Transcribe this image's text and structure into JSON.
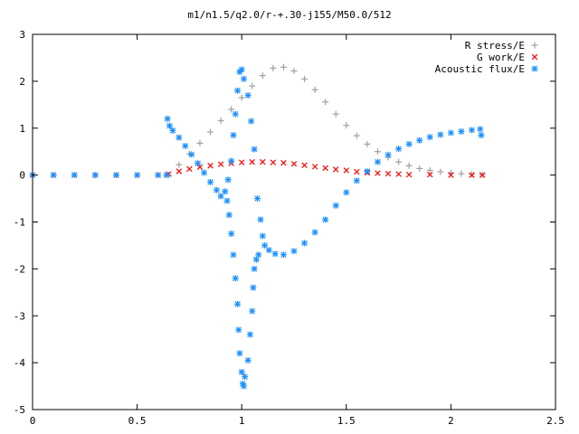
{
  "chart_data": {
    "type": "scatter",
    "title": "m1/n1.5/q2.0/r-+.30-j155/M50.0/512",
    "xlabel": "",
    "ylabel": "",
    "xlim": [
      0,
      2.5
    ],
    "ylim": [
      -5,
      3
    ],
    "x_ticks": [
      {
        "value": 0,
        "label": "0"
      },
      {
        "value": 0.5,
        "label": "0.5"
      },
      {
        "value": 1,
        "label": "1"
      },
      {
        "value": 1.5,
        "label": "1.5"
      },
      {
        "value": 2,
        "label": "2"
      },
      {
        "value": 2.5,
        "label": "2.5"
      }
    ],
    "y_ticks": [
      {
        "value": -5,
        "label": "-5"
      },
      {
        "value": -4,
        "label": "-4"
      },
      {
        "value": -3,
        "label": "-3"
      },
      {
        "value": -2,
        "label": "-2"
      },
      {
        "value": -1,
        "label": "-1"
      },
      {
        "value": 0,
        "label": "0"
      },
      {
        "value": 1,
        "label": "1"
      },
      {
        "value": 2,
        "label": "2"
      },
      {
        "value": 3,
        "label": "3"
      }
    ],
    "grid": false,
    "legend_position": "top-right",
    "series": [
      {
        "name": "R stress/E",
        "color": "#a0a0a0",
        "marker": "plus",
        "points": [
          [
            0.65,
            0.0
          ],
          [
            0.7,
            0.22
          ],
          [
            0.75,
            0.45
          ],
          [
            0.8,
            0.68
          ],
          [
            0.85,
            0.92
          ],
          [
            0.9,
            1.16
          ],
          [
            0.95,
            1.4
          ],
          [
            1.0,
            1.65
          ],
          [
            1.05,
            1.9
          ],
          [
            1.1,
            2.12
          ],
          [
            1.15,
            2.28
          ],
          [
            1.2,
            2.3
          ],
          [
            1.25,
            2.22
          ],
          [
            1.3,
            2.05
          ],
          [
            1.35,
            1.82
          ],
          [
            1.4,
            1.56
          ],
          [
            1.45,
            1.3
          ],
          [
            1.5,
            1.06
          ],
          [
            1.55,
            0.84
          ],
          [
            1.6,
            0.66
          ],
          [
            1.65,
            0.5
          ],
          [
            1.7,
            0.38
          ],
          [
            1.75,
            0.28
          ],
          [
            1.8,
            0.2
          ],
          [
            1.85,
            0.14
          ],
          [
            1.9,
            0.1
          ],
          [
            1.95,
            0.07
          ],
          [
            2.0,
            0.05
          ],
          [
            2.05,
            0.03
          ],
          [
            2.1,
            0.02
          ],
          [
            2.15,
            0.01
          ]
        ]
      },
      {
        "name": "G work/E",
        "color": "#ff0000",
        "marker": "cross",
        "points": [
          [
            0.0,
            0.0
          ],
          [
            0.1,
            0.0
          ],
          [
            0.2,
            0.0
          ],
          [
            0.3,
            0.0
          ],
          [
            0.4,
            0.0
          ],
          [
            0.5,
            0.0
          ],
          [
            0.6,
            0.0
          ],
          [
            0.65,
            0.02
          ],
          [
            0.7,
            0.08
          ],
          [
            0.75,
            0.13
          ],
          [
            0.8,
            0.17
          ],
          [
            0.85,
            0.2
          ],
          [
            0.9,
            0.23
          ],
          [
            0.95,
            0.25
          ],
          [
            1.0,
            0.27
          ],
          [
            1.05,
            0.28
          ],
          [
            1.1,
            0.28
          ],
          [
            1.15,
            0.27
          ],
          [
            1.2,
            0.26
          ],
          [
            1.25,
            0.24
          ],
          [
            1.3,
            0.21
          ],
          [
            1.35,
            0.18
          ],
          [
            1.4,
            0.15
          ],
          [
            1.45,
            0.12
          ],
          [
            1.5,
            0.1
          ],
          [
            1.55,
            0.07
          ],
          [
            1.6,
            0.05
          ],
          [
            1.65,
            0.04
          ],
          [
            1.7,
            0.03
          ],
          [
            1.75,
            0.02
          ],
          [
            1.8,
            0.01
          ],
          [
            1.9,
            0.01
          ],
          [
            2.0,
            0.0
          ],
          [
            2.1,
            0.0
          ],
          [
            2.15,
            0.0
          ]
        ]
      },
      {
        "name": "Acoustic flux/E",
        "color": "#1e90ff",
        "marker": "star",
        "points": [
          [
            0.0,
            0.0
          ],
          [
            0.1,
            0.0
          ],
          [
            0.2,
            0.0
          ],
          [
            0.3,
            0.0
          ],
          [
            0.4,
            0.0
          ],
          [
            0.5,
            0.0
          ],
          [
            0.6,
            0.0
          ],
          [
            0.64,
            0.0
          ],
          [
            0.645,
            1.2
          ],
          [
            0.655,
            1.05
          ],
          [
            0.67,
            0.95
          ],
          [
            0.7,
            0.8
          ],
          [
            0.73,
            0.62
          ],
          [
            0.76,
            0.44
          ],
          [
            0.79,
            0.25
          ],
          [
            0.82,
            0.05
          ],
          [
            0.85,
            -0.15
          ],
          [
            0.88,
            -0.32
          ],
          [
            0.9,
            -0.45
          ],
          [
            0.92,
            -0.35
          ],
          [
            0.935,
            -0.1
          ],
          [
            0.95,
            0.3
          ],
          [
            0.96,
            0.85
          ],
          [
            0.97,
            1.3
          ],
          [
            0.98,
            1.8
          ],
          [
            0.99,
            2.2
          ],
          [
            1.0,
            2.25
          ],
          [
            1.01,
            2.05
          ],
          [
            1.03,
            1.7
          ],
          [
            1.045,
            1.15
          ],
          [
            1.06,
            0.55
          ],
          [
            1.075,
            -0.5
          ],
          [
            1.09,
            -0.95
          ],
          [
            1.1,
            -1.3
          ],
          [
            1.11,
            -1.5
          ],
          [
            1.13,
            -1.6
          ],
          [
            1.16,
            -1.68
          ],
          [
            1.2,
            -1.7
          ],
          [
            1.25,
            -1.62
          ],
          [
            1.3,
            -1.45
          ],
          [
            1.35,
            -1.22
          ],
          [
            1.4,
            -0.95
          ],
          [
            1.45,
            -0.65
          ],
          [
            1.5,
            -0.37
          ],
          [
            1.55,
            -0.12
          ],
          [
            1.6,
            0.08
          ],
          [
            1.65,
            0.28
          ],
          [
            1.7,
            0.43
          ],
          [
            1.75,
            0.56
          ],
          [
            1.8,
            0.66
          ],
          [
            1.85,
            0.74
          ],
          [
            1.9,
            0.81
          ],
          [
            1.95,
            0.86
          ],
          [
            2.0,
            0.9
          ],
          [
            2.05,
            0.93
          ],
          [
            2.1,
            0.96
          ],
          [
            2.14,
            0.98
          ],
          [
            2.145,
            0.85
          ],
          [
            0.93,
            -0.55
          ],
          [
            0.94,
            -0.85
          ],
          [
            0.95,
            -1.25
          ],
          [
            0.96,
            -1.7
          ],
          [
            0.97,
            -2.2
          ],
          [
            0.98,
            -2.75
          ],
          [
            0.985,
            -3.3
          ],
          [
            0.99,
            -3.8
          ],
          [
            1.0,
            -4.2
          ],
          [
            1.005,
            -4.45
          ],
          [
            1.01,
            -4.5
          ],
          [
            1.015,
            -4.3
          ],
          [
            1.03,
            -3.95
          ],
          [
            1.04,
            -3.4
          ],
          [
            1.05,
            -2.9
          ],
          [
            1.055,
            -2.4
          ],
          [
            1.06,
            -2.0
          ],
          [
            1.07,
            -1.8
          ],
          [
            1.08,
            -1.7
          ]
        ]
      }
    ]
  }
}
